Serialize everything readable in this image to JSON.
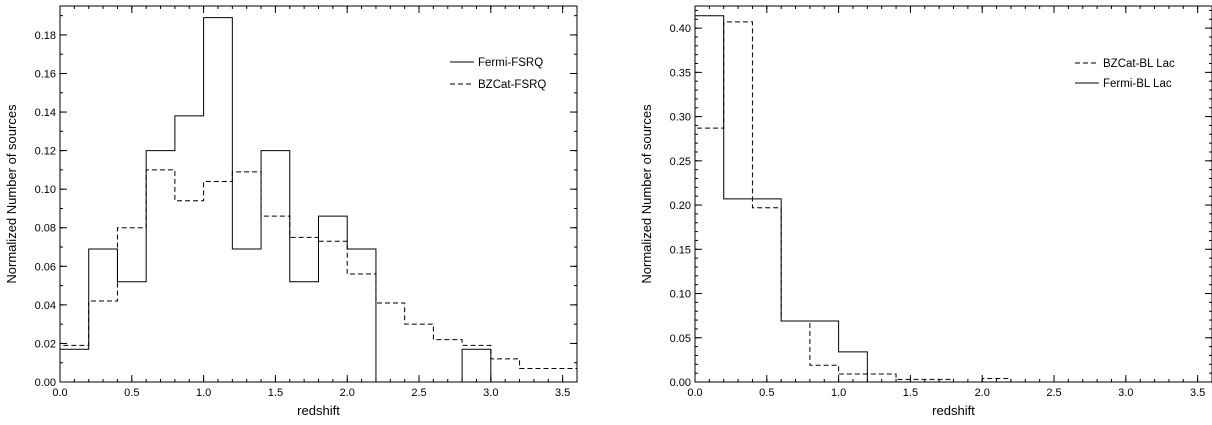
{
  "chart_data": [
    {
      "type": "line",
      "step": true,
      "xlabel": "redshift",
      "ylabel": "Normalized Number of sources",
      "xlim": [
        0.0,
        3.6
      ],
      "ylim": [
        0.0,
        0.195
      ],
      "xticks": [
        "0.0",
        "0.5",
        "1.0",
        "1.5",
        "2.0",
        "2.5",
        "3.0",
        "3.5"
      ],
      "yticks": [
        "0.00",
        "0.02",
        "0.04",
        "0.06",
        "0.08",
        "0.10",
        "0.12",
        "0.14",
        "0.16",
        "0.18"
      ],
      "legend_position": "top-right",
      "bin_edges": [
        0.0,
        0.2,
        0.4,
        0.6,
        0.8,
        1.0,
        1.2,
        1.4,
        1.6,
        1.8,
        2.0,
        2.2,
        2.4,
        2.6,
        2.8,
        3.0,
        3.2,
        3.4,
        3.6
      ],
      "series": [
        {
          "name": "Fermi-FSRQ",
          "style": "solid",
          "values": [
            0.017,
            0.069,
            0.052,
            0.12,
            0.138,
            0.189,
            0.069,
            0.12,
            0.052,
            0.086,
            0.069,
            0.0,
            0.0,
            0.0,
            0.017,
            0.0,
            0.0,
            0.0
          ]
        },
        {
          "name": "BZCat-FSRQ",
          "style": "dashed",
          "values": [
            0.019,
            0.042,
            0.08,
            0.11,
            0.094,
            0.104,
            0.109,
            0.086,
            0.075,
            0.073,
            0.056,
            0.041,
            0.03,
            0.022,
            0.019,
            0.012,
            0.007,
            0.007
          ]
        }
      ]
    },
    {
      "type": "line",
      "step": true,
      "xlabel": "redshift",
      "ylabel": "Normalized Number of sources",
      "xlim": [
        0.0,
        3.6
      ],
      "ylim": [
        0.0,
        0.425
      ],
      "xticks": [
        "0.0",
        "0.5",
        "1.0",
        "1.5",
        "2.0",
        "2.5",
        "3.0",
        "3.5"
      ],
      "yticks": [
        "0.00",
        "0.05",
        "0.10",
        "0.15",
        "0.20",
        "0.25",
        "0.30",
        "0.35",
        "0.40"
      ],
      "legend_position": "top-right",
      "bin_edges": [
        0.0,
        0.2,
        0.4,
        0.6,
        0.8,
        1.0,
        1.2,
        1.4,
        1.6,
        1.8,
        2.0,
        2.2,
        2.4,
        2.6,
        2.8,
        3.0,
        3.2,
        3.4,
        3.6
      ],
      "series": [
        {
          "name": "BZCat-BL Lac",
          "style": "dashed",
          "values": [
            0.287,
            0.407,
            0.197,
            0.069,
            0.019,
            0.009,
            0.009,
            0.003,
            0.003,
            0.0,
            0.004,
            0.0,
            0.0,
            0.0,
            0.0,
            0.0,
            0.0,
            0.0
          ]
        },
        {
          "name": "Fermi-BL Lac",
          "style": "solid",
          "values": [
            0.414,
            0.207,
            0.207,
            0.069,
            0.069,
            0.034,
            0.0,
            0.0,
            0.0,
            0.0,
            0.0,
            0.0,
            0.0,
            0.0,
            0.0,
            0.0,
            0.0,
            0.0
          ]
        }
      ]
    }
  ]
}
